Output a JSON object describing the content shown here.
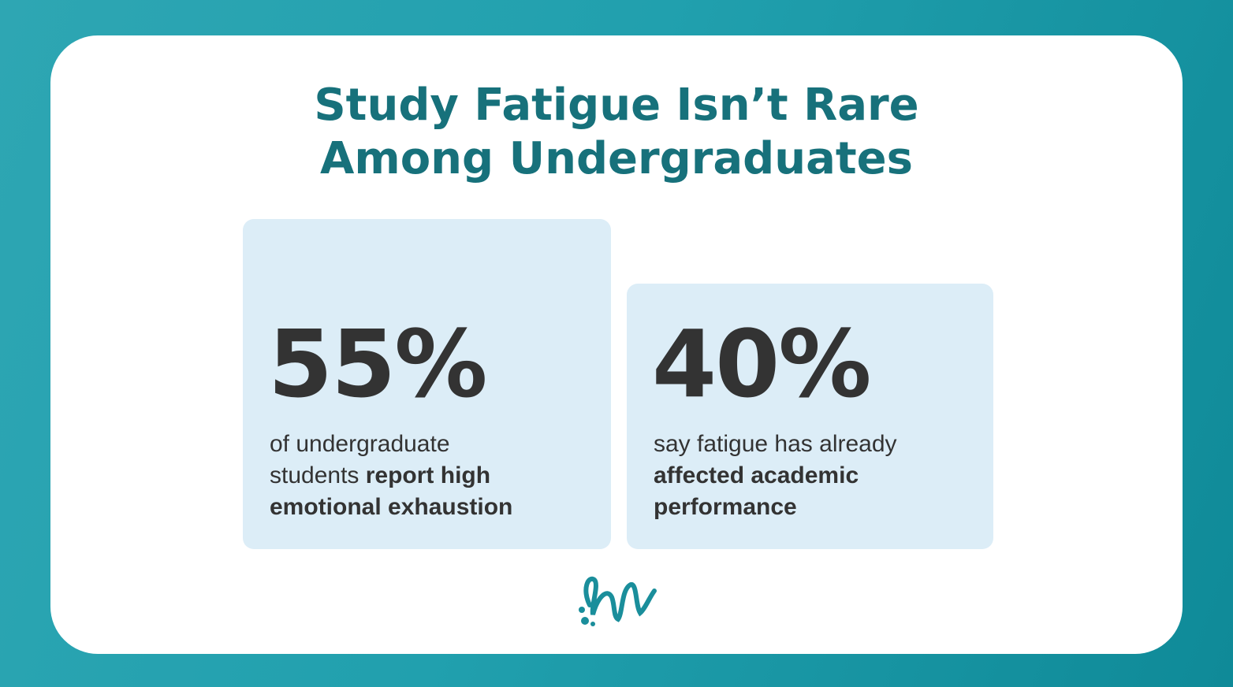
{
  "title": {
    "lines": [
      "Study Fatigue Isn’t Rare",
      "Among Undergraduates"
    ]
  },
  "cards": [
    {
      "stat": "55%",
      "description": [
        {
          "text": "of undergraduate students ",
          "bold": false
        },
        {
          "text": "report high emotional exhaustion",
          "bold": true
        }
      ]
    },
    {
      "stat": "40%",
      "description": [
        {
          "text": "say fatigue has already ",
          "bold": false
        },
        {
          "text": "affected academic performance",
          "bold": true
        }
      ]
    }
  ]
}
